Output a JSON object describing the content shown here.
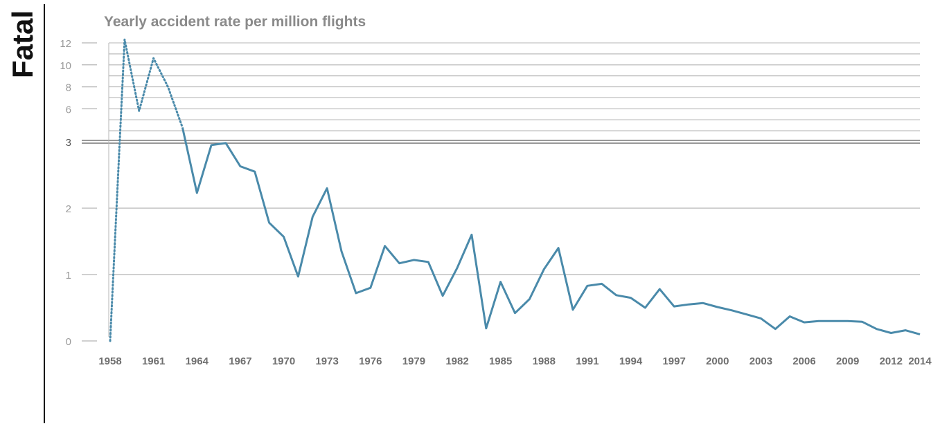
{
  "side_label": "Fatal",
  "chart_data": {
    "type": "line",
    "title": "Yearly accident rate per million flights",
    "xlabel": "",
    "ylabel": "",
    "y_scale": "broken: linear 0–3 (expanded) and 3–12 (compressed)",
    "y_ticks_lower": [
      0,
      1,
      2,
      3
    ],
    "y_ticks_upper": [
      6,
      8,
      10,
      12
    ],
    "x_ticks": [
      1958,
      1961,
      1964,
      1967,
      1970,
      1973,
      1976,
      1979,
      1982,
      1985,
      1988,
      1991,
      1994,
      1997,
      2000,
      2003,
      2006,
      2009,
      2012,
      2014
    ],
    "grid": true,
    "colors": {
      "line": "#4a8aaa",
      "grid": "#b5b5b5",
      "axis_text": "#9a9a9a",
      "title": "#8a8a8a",
      "break_line": "#777777"
    },
    "series": [
      {
        "style": "dotted",
        "x": [
          1958,
          1959,
          1960,
          1961,
          1962,
          1963
        ],
        "y": [
          0,
          12.3,
          5.8,
          10.6,
          8.0,
          4.3
        ]
      },
      {
        "style": "solid",
        "x": [
          1963,
          1964,
          1965,
          1966,
          1967,
          1968,
          1969,
          1970,
          1971,
          1972,
          1973,
          1974,
          1975,
          1976,
          1977,
          1978,
          1979,
          1980,
          1981,
          1982,
          1983,
          1984,
          1985,
          1986,
          1987,
          1988,
          1989,
          1990,
          1991,
          1992,
          1993,
          1994,
          1995,
          1996,
          1997,
          1998,
          1999,
          2000,
          2001,
          2002,
          2003,
          2004,
          2005,
          2006,
          2007,
          2008,
          2009,
          2010,
          2011,
          2012,
          2013,
          2014
        ],
        "y": [
          4.3,
          2.23,
          2.95,
          2.98,
          2.63,
          2.55,
          1.78,
          1.57,
          0.97,
          1.87,
          2.3,
          1.35,
          0.72,
          0.8,
          1.43,
          1.17,
          1.22,
          1.19,
          0.68,
          1.1,
          1.6,
          0.19,
          0.89,
          0.42,
          0.63,
          1.08,
          1.4,
          0.47,
          0.83,
          0.86,
          0.69,
          0.65,
          0.5,
          0.78,
          0.52,
          0.55,
          0.57,
          0.51,
          0.46,
          0.4,
          0.34,
          0.18,
          0.37,
          0.28,
          0.3,
          0.3,
          0.3,
          0.29,
          0.18,
          0.12,
          0.16,
          0.1
        ]
      }
    ]
  }
}
